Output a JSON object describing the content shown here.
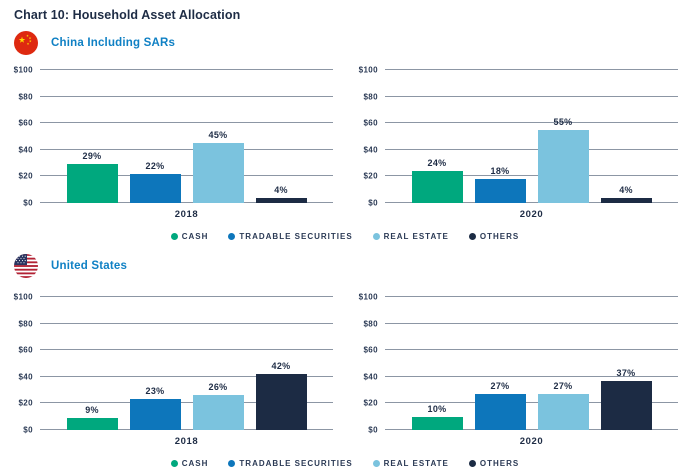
{
  "page": {
    "title": "Chart 10: Household Asset Allocation"
  },
  "sections": [
    {
      "title": "China Including SARs",
      "flag_icon": "china-flag-icon"
    },
    {
      "title": "United States",
      "flag_icon": "us-flag-icon"
    }
  ],
  "colors": {
    "title_navy": "#1e2c45",
    "section_title_blue": "#0f80c4",
    "gridline_gray": "#8c96a4",
    "china_flag_red": "#de2910",
    "china_flag_yellow": "#ffde00",
    "us_flag_red": "#b22234",
    "us_flag_canton": "#2a3560"
  },
  "chart_data": {
    "type": "bar",
    "title": "Chart 10: Household Asset Allocation",
    "xlabel": "",
    "ylabel": "",
    "unit_prefix": "$",
    "ylim": [
      0,
      100
    ],
    "yticks": [
      0,
      20,
      40,
      60,
      80,
      100
    ],
    "ytick_labels": [
      "$0",
      "$20",
      "$40",
      "$60",
      "$80",
      "$100"
    ],
    "grid": true,
    "legend_position": "bottom",
    "series_labels": [
      "CASH",
      "TRADABLE SECURITIES",
      "REAL ESTATE",
      "OTHERS"
    ],
    "series_colors": [
      "#00a87e",
      "#0d76bb",
      "#7bc3de",
      "#1c2b44"
    ],
    "panels": [
      {
        "section": "China Including SARs",
        "x_label": "2018",
        "values": [
          29,
          22,
          45,
          4
        ],
        "value_labels": [
          "29%",
          "22%",
          "45%",
          "4%"
        ]
      },
      {
        "section": "China Including SARs",
        "x_label": "2020",
        "values": [
          24,
          18,
          55,
          4
        ],
        "value_labels": [
          "24%",
          "18%",
          "55%",
          "4%"
        ]
      },
      {
        "section": "United States",
        "x_label": "2018",
        "values": [
          9,
          23,
          26,
          42
        ],
        "value_labels": [
          "9%",
          "23%",
          "26%",
          "42%"
        ]
      },
      {
        "section": "United States",
        "x_label": "2020",
        "values": [
          10,
          27,
          27,
          37
        ],
        "value_labels": [
          "10%",
          "27%",
          "27%",
          "37%"
        ]
      }
    ]
  }
}
